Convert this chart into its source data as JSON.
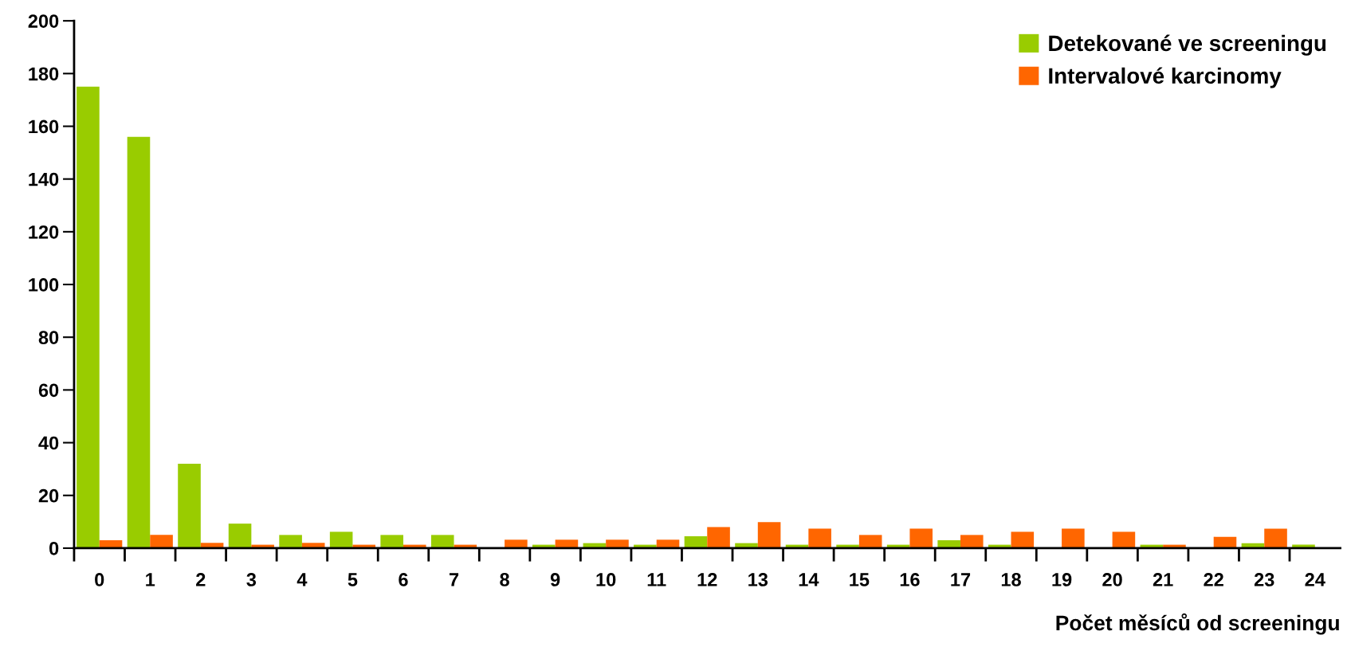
{
  "chart_data": {
    "type": "bar",
    "xlabel": "Počet měsíců od screeningu",
    "categories": [
      "0",
      "1",
      "2",
      "3",
      "4",
      "5",
      "6",
      "7",
      "8",
      "9",
      "10",
      "11",
      "12",
      "13",
      "14",
      "15",
      "16",
      "17",
      "18",
      "19",
      "20",
      "21",
      "22",
      "23",
      "24"
    ],
    "series": [
      {
        "name": "Detekované ve screeningu",
        "color": "#99cc00",
        "values": [
          175,
          156,
          32,
          9.3,
          5,
          6.2,
          5,
          5,
          0,
          1.3,
          1.9,
          1.3,
          4.5,
          1.9,
          1.3,
          1.3,
          1.3,
          3,
          1.3,
          0,
          0,
          1.3,
          0,
          1.9,
          1.3
        ]
      },
      {
        "name": "Intervalové karcinomy",
        "color": "#ff6600",
        "values": [
          3,
          5,
          2,
          1.3,
          2,
          1.3,
          1.3,
          1.3,
          3.2,
          3.2,
          3.2,
          3.2,
          8,
          9.9,
          7.4,
          5,
          7.4,
          5,
          6.2,
          7.4,
          6.2,
          1.3,
          4.3,
          7.4,
          0
        ]
      }
    ],
    "ylim": [
      0,
      200
    ],
    "yticks": [
      0,
      20,
      40,
      60,
      80,
      100,
      120,
      140,
      160,
      180,
      200
    ],
    "grid": false,
    "legend": "top right"
  }
}
